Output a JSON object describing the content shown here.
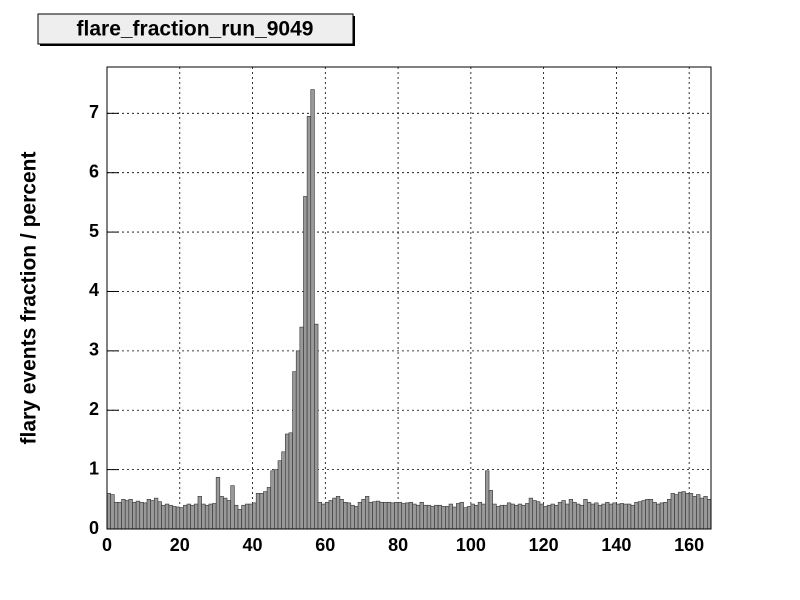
{
  "chart_data": {
    "type": "histogram",
    "title": "flare_fraction_run_9049",
    "y_label": "flary events fraction / percent",
    "bins": [
      0,
      1,
      2,
      3,
      4,
      5,
      6,
      7,
      8,
      9,
      10,
      11,
      12,
      13,
      14,
      15,
      16,
      17,
      18,
      19,
      20,
      21,
      22,
      23,
      24,
      25,
      26,
      27,
      28,
      29,
      30,
      31,
      32,
      33,
      34,
      35,
      36,
      37,
      38,
      39,
      40,
      41,
      42,
      43,
      44,
      45,
      46,
      47,
      48,
      49,
      50,
      51,
      52,
      53,
      54,
      55,
      56,
      57,
      58,
      59,
      60,
      61,
      62,
      63,
      64,
      65,
      66,
      67,
      68,
      69,
      70,
      71,
      72,
      73,
      74,
      75,
      76,
      77,
      78,
      79,
      80,
      81,
      82,
      83,
      84,
      85,
      86,
      87,
      88,
      89,
      90,
      91,
      92,
      93,
      94,
      95,
      96,
      97,
      98,
      99,
      100,
      101,
      102,
      103,
      104,
      105,
      106,
      107,
      108,
      109,
      110,
      111,
      112,
      113,
      114,
      115,
      116,
      117,
      118,
      119,
      120,
      121,
      122,
      123,
      124,
      125,
      126,
      127,
      128,
      129,
      130,
      131,
      132,
      133,
      134,
      135,
      136,
      137,
      138,
      139,
      140,
      141,
      142,
      143,
      144,
      145,
      146,
      147,
      148,
      149,
      150,
      151,
      152,
      153,
      154,
      155,
      156,
      157,
      158,
      159,
      160,
      161,
      162,
      163,
      164,
      165,
      166
    ],
    "values": [
      0.6,
      0.58,
      0.45,
      0.45,
      0.5,
      0.48,
      0.5,
      0.45,
      0.47,
      0.45,
      0.44,
      0.5,
      0.48,
      0.52,
      0.46,
      0.4,
      0.42,
      0.4,
      0.38,
      0.37,
      0.36,
      0.4,
      0.42,
      0.4,
      0.42,
      0.55,
      0.42,
      0.4,
      0.42,
      0.43,
      0.87,
      0.55,
      0.52,
      0.48,
      0.73,
      0.4,
      0.33,
      0.4,
      0.42,
      0.42,
      0.44,
      0.6,
      0.6,
      0.63,
      0.7,
      0.98,
      1.0,
      1.15,
      1.3,
      1.6,
      1.62,
      2.65,
      3.0,
      3.4,
      5.6,
      6.95,
      7.4,
      3.45,
      0.45,
      0.42,
      0.45,
      0.48,
      0.52,
      0.55,
      0.5,
      0.45,
      0.44,
      0.4,
      0.38,
      0.45,
      0.5,
      0.55,
      0.45,
      0.46,
      0.47,
      0.45,
      0.45,
      0.45,
      0.44,
      0.45,
      0.45,
      0.43,
      0.44,
      0.45,
      0.42,
      0.4,
      0.45,
      0.4,
      0.4,
      0.38,
      0.4,
      0.4,
      0.38,
      0.38,
      0.42,
      0.37,
      0.43,
      0.45,
      0.36,
      0.38,
      0.42,
      0.4,
      0.45,
      0.42,
      0.98,
      0.65,
      0.42,
      0.38,
      0.4,
      0.4,
      0.44,
      0.42,
      0.4,
      0.42,
      0.4,
      0.43,
      0.52,
      0.48,
      0.46,
      0.42,
      0.38,
      0.4,
      0.42,
      0.4,
      0.45,
      0.48,
      0.42,
      0.5,
      0.45,
      0.42,
      0.4,
      0.5,
      0.45,
      0.42,
      0.44,
      0.4,
      0.42,
      0.45,
      0.42,
      0.44,
      0.42,
      0.43,
      0.42,
      0.42,
      0.4,
      0.45,
      0.46,
      0.48,
      0.5,
      0.5,
      0.45,
      0.42,
      0.44,
      0.45,
      0.5,
      0.6,
      0.58,
      0.62,
      0.63,
      0.6,
      0.6,
      0.55,
      0.58,
      0.52,
      0.55,
      0.5
    ],
    "color": "#999999",
    "xlim": [
      0,
      166
    ],
    "ylim": [
      0,
      7.78
    ],
    "xticks": [
      0,
      20,
      40,
      60,
      80,
      100,
      120,
      140,
      160
    ],
    "yticks": [
      0,
      1,
      2,
      3,
      4,
      5,
      6,
      7
    ],
    "grid": true
  }
}
